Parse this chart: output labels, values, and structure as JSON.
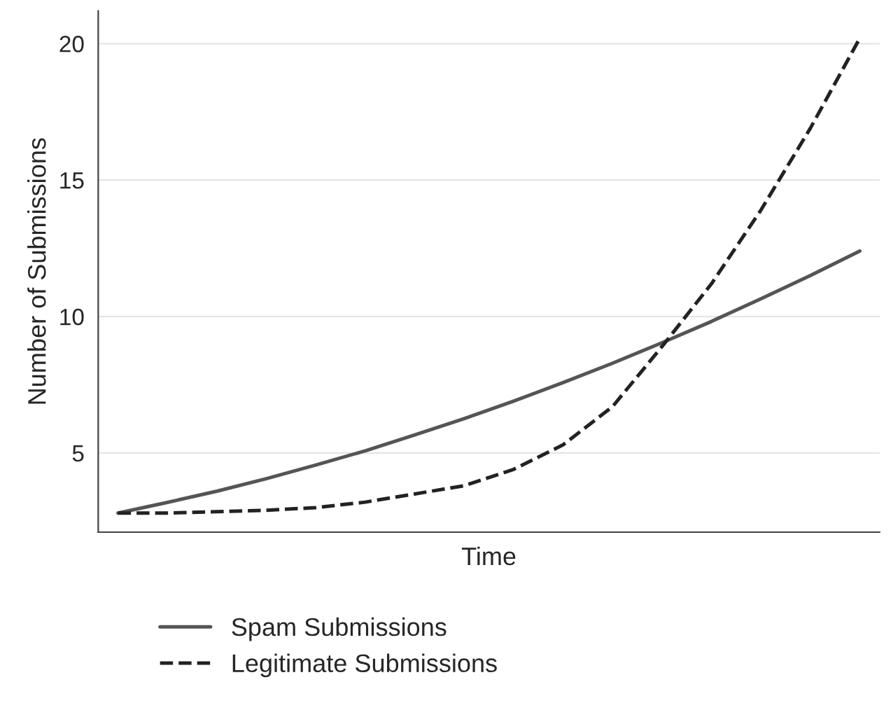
{
  "chart_data": {
    "type": "line",
    "xlabel": "Time",
    "ylabel": "Number of Submissions",
    "categories": [
      null,
      null,
      null,
      null,
      null,
      null,
      null,
      null,
      null,
      null,
      null,
      null,
      null,
      null,
      null,
      null
    ],
    "series": [
      {
        "name": "Spam Submissions",
        "color": "#555555",
        "line_style": "solid",
        "values": [
          2.8,
          3.19,
          3.6,
          4.06,
          4.56,
          5.08,
          5.66,
          6.26,
          6.9,
          7.58,
          8.29,
          9.04,
          9.82,
          10.65,
          11.5,
          12.4
        ]
      },
      {
        "name": "Legitimate Submissions",
        "color": "#222222",
        "line_style": "dashed",
        "values": [
          2.8,
          2.8,
          2.85,
          2.9,
          3.0,
          3.2,
          3.5,
          3.8,
          4.4,
          5.3,
          6.7,
          8.9,
          11.2,
          13.9,
          16.9,
          20.2
        ]
      }
    ],
    "ylim": [
      2.1,
      21.2
    ],
    "yticks": [
      5,
      10,
      15,
      20
    ],
    "grid": "y",
    "legend": "bottom"
  }
}
